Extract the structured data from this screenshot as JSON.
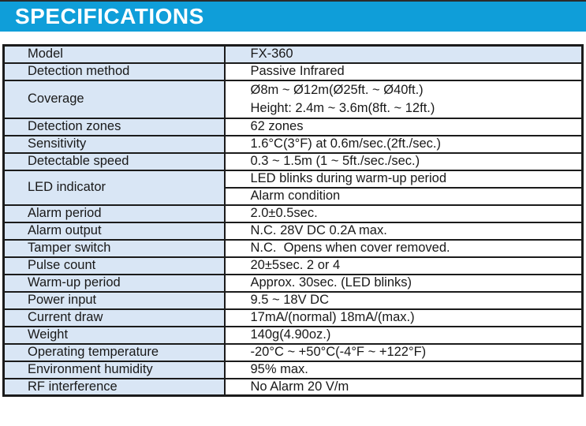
{
  "banner": {
    "title": "SPECIFICATIONS",
    "background_color": "#0f9ed9",
    "text_color": "#ffffff"
  },
  "table": {
    "row_tint_color": "#d9e6f5",
    "border_color": "#1b1b1b",
    "rows": [
      {
        "label": "Model",
        "values": [
          "FX-360"
        ],
        "highlight": true
      },
      {
        "label": "Detection method",
        "values": [
          "Passive Infrared"
        ]
      },
      {
        "label": "Coverage",
        "values": [
          "Ø8m ~ Ø12m(Ø25ft. ~ Ø40ft.)",
          "Height: 2.4m ~ 3.6m(8ft. ~ 12ft.)"
        ],
        "multiline": true
      },
      {
        "label": "Detection zones",
        "values": [
          "62 zones"
        ]
      },
      {
        "label": "Sensitivity",
        "values": [
          "1.6°C(3°F) at 0.6m/sec.(2ft./sec.)"
        ]
      },
      {
        "label": "Detectable speed",
        "values": [
          "0.3 ~ 1.5m (1 ~ 5ft./sec./sec.)"
        ]
      },
      {
        "label": "LED indicator",
        "values": [
          "LED blinks during warm-up period",
          "Alarm condition"
        ],
        "split": true
      },
      {
        "label": "Alarm period",
        "values": [
          "2.0±0.5sec."
        ]
      },
      {
        "label": "Alarm output",
        "values": [
          "N.C. 28V DC 0.2A max."
        ]
      },
      {
        "label": "Tamper switch",
        "values": [
          "N.C.  Opens when cover removed."
        ]
      },
      {
        "label": "Pulse count",
        "values": [
          "20±5sec. 2 or 4"
        ]
      },
      {
        "label": "Warm-up period",
        "values": [
          "Approx. 30sec. (LED blinks)"
        ]
      },
      {
        "label": "Power input",
        "values": [
          "9.5 ~ 18V DC"
        ]
      },
      {
        "label": "Current draw",
        "values": [
          "17mA/(normal) 18mA/(max.)"
        ]
      },
      {
        "label": "Weight",
        "values": [
          "140g(4.90oz.)"
        ]
      },
      {
        "label": "Operating temperature",
        "values": [
          "-20°C ~ +50°C(-4°F ~ +122°F)"
        ]
      },
      {
        "label": "Environment humidity",
        "values": [
          "95% max."
        ]
      },
      {
        "label": "RF interference",
        "values": [
          "No Alarm 20 V/m"
        ]
      }
    ]
  }
}
